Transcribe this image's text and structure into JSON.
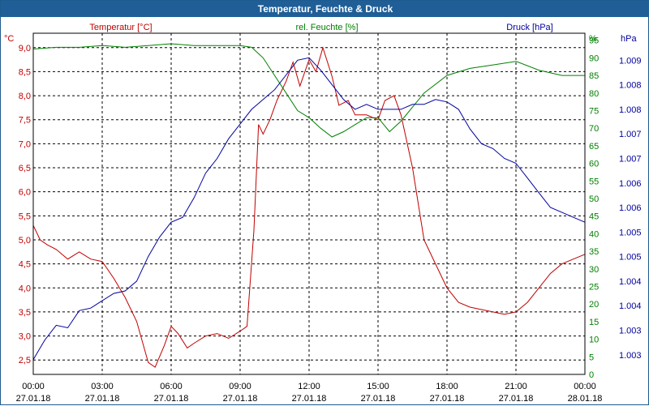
{
  "chart_data": {
    "type": "line",
    "title": "Temperatur, Feuchte & Druck",
    "x_tick_times": [
      "00:00",
      "03:00",
      "06:00",
      "09:00",
      "12:00",
      "15:00",
      "18:00",
      "21:00",
      "00:00"
    ],
    "x_tick_dates": [
      "27.01.18",
      "27.01.18",
      "27.01.18",
      "27.01.18",
      "27.01.18",
      "27.01.18",
      "27.01.18",
      "27.01.18",
      "28.01.18"
    ],
    "xlim_hours": [
      0,
      24
    ],
    "grid": true,
    "left_axis": {
      "unit": "°C",
      "label": "Temperatur [°C]",
      "color": "#c00000",
      "ylim": [
        2.2,
        9.3
      ],
      "ticks": [
        "2,5",
        "3,0",
        "3,5",
        "4,0",
        "4,5",
        "5,0",
        "5,5",
        "6,0",
        "6,5",
        "7,0",
        "7,5",
        "8,0",
        "8,5",
        "9,0"
      ],
      "tick_values": [
        2.5,
        3.0,
        3.5,
        4.0,
        4.5,
        5.0,
        5.5,
        6.0,
        6.5,
        7.0,
        7.5,
        8.0,
        8.5,
        9.0
      ]
    },
    "middle_axis": {
      "unit": "%",
      "label": "rel. Feuchte [%]",
      "color": "#008000",
      "ylim": [
        0,
        97
      ],
      "ticks": [
        "0",
        "5",
        "10",
        "15",
        "20",
        "25",
        "30",
        "35",
        "40",
        "45",
        "50",
        "55",
        "60",
        "65",
        "70",
        "75",
        "80",
        "85",
        "90",
        "95"
      ],
      "tick_values": [
        0,
        5,
        10,
        15,
        20,
        25,
        30,
        35,
        40,
        45,
        50,
        55,
        60,
        65,
        70,
        75,
        80,
        85,
        90,
        95
      ]
    },
    "right_axis": {
      "unit": "hPa",
      "label": "Druck [hPa]",
      "color": "#0000a0",
      "ylim": [
        1002.5,
        1009.45
      ],
      "ticks": [
        "1.003",
        "1.003",
        "1.004",
        "1.004",
        "1.005",
        "1.005",
        "1.006",
        "1.006",
        "1.007",
        "1.007",
        "1.008",
        "1.008",
        "1.009"
      ],
      "tick_values": [
        1002.9,
        1003.4,
        1003.9,
        1004.4,
        1004.9,
        1005.4,
        1005.9,
        1006.4,
        1006.9,
        1007.4,
        1007.9,
        1008.4,
        1008.9
      ]
    },
    "series": [
      {
        "name": "Temperatur [°C]",
        "axis": "left",
        "color": "#c00000",
        "x": [
          0,
          0.3,
          0.6,
          1,
          1.5,
          2,
          2.5,
          3,
          3.5,
          4,
          4.5,
          5,
          5.3,
          5.7,
          6,
          6.3,
          6.7,
          7,
          7.5,
          8,
          8.5,
          9,
          9.3,
          9.6,
          9.8,
          10,
          10.3,
          10.6,
          11,
          11.3,
          11.6,
          12,
          12.3,
          12.6,
          13,
          13.3,
          13.7,
          14,
          14.5,
          15,
          15.3,
          15.7,
          16,
          16.5,
          17,
          17.5,
          18,
          18.5,
          19,
          19.5,
          20,
          20.5,
          21,
          21.5,
          22,
          22.5,
          23,
          23.5,
          24
        ],
        "values": [
          5.3,
          5.0,
          4.9,
          4.8,
          4.6,
          4.75,
          4.6,
          4.55,
          4.2,
          3.8,
          3.3,
          2.45,
          2.35,
          2.8,
          3.2,
          3.05,
          2.75,
          2.85,
          3.0,
          3.05,
          2.95,
          3.1,
          3.2,
          5.2,
          7.4,
          7.2,
          7.5,
          7.9,
          8.3,
          8.7,
          8.2,
          8.75,
          8.5,
          9.0,
          8.4,
          7.8,
          7.9,
          7.6,
          7.6,
          7.5,
          7.9,
          8.0,
          7.6,
          6.5,
          5.0,
          4.5,
          4.0,
          3.7,
          3.6,
          3.55,
          3.5,
          3.45,
          3.5,
          3.7,
          4.0,
          4.3,
          4.5,
          4.6,
          4.7
        ]
      },
      {
        "name": "rel. Feuchte [%]",
        "axis": "middle",
        "color": "#008000",
        "x": [
          0,
          1,
          2,
          3,
          4,
          5,
          6,
          7,
          8,
          9,
          9.5,
          10,
          10.5,
          11,
          11.5,
          12,
          12.5,
          13,
          13.5,
          14,
          14.5,
          15,
          15.5,
          16,
          17,
          18,
          19,
          20,
          21,
          22,
          23,
          24
        ],
        "values": [
          92.5,
          93,
          93,
          93.5,
          93,
          93.5,
          94,
          93.5,
          93.5,
          93.5,
          93,
          90,
          85,
          80,
          75,
          73,
          70,
          67.5,
          69,
          71,
          73,
          73,
          69,
          72,
          80,
          85,
          87,
          88,
          89,
          86.5,
          85,
          85
        ]
      },
      {
        "name": "Druck [hPa]",
        "axis": "right",
        "color": "#0000a0",
        "x": [
          0,
          0.5,
          1,
          1.5,
          2,
          2.5,
          3,
          3.5,
          4,
          4.5,
          5,
          5.5,
          6,
          6.5,
          7,
          7.5,
          8,
          8.5,
          9,
          9.5,
          10,
          10.5,
          11,
          11.5,
          12,
          12.5,
          13,
          13.5,
          14,
          14.5,
          15,
          15.5,
          16,
          16.5,
          17,
          17.5,
          18,
          18.5,
          19,
          19.5,
          20,
          20.5,
          21,
          21.5,
          22,
          22.5,
          23,
          23.5,
          24
        ],
        "values": [
          1002.8,
          1003.2,
          1003.5,
          1003.45,
          1003.8,
          1003.85,
          1004.0,
          1004.15,
          1004.2,
          1004.4,
          1004.9,
          1005.3,
          1005.6,
          1005.7,
          1006.1,
          1006.6,
          1006.9,
          1007.3,
          1007.6,
          1007.9,
          1008.1,
          1008.3,
          1008.6,
          1008.9,
          1008.95,
          1008.7,
          1008.4,
          1008.1,
          1007.9,
          1008.0,
          1007.9,
          1007.9,
          1007.9,
          1008.0,
          1008.0,
          1008.1,
          1008.05,
          1007.9,
          1007.5,
          1007.2,
          1007.1,
          1006.9,
          1006.8,
          1006.5,
          1006.2,
          1005.9,
          1005.8,
          1005.7,
          1005.6
        ]
      }
    ]
  }
}
